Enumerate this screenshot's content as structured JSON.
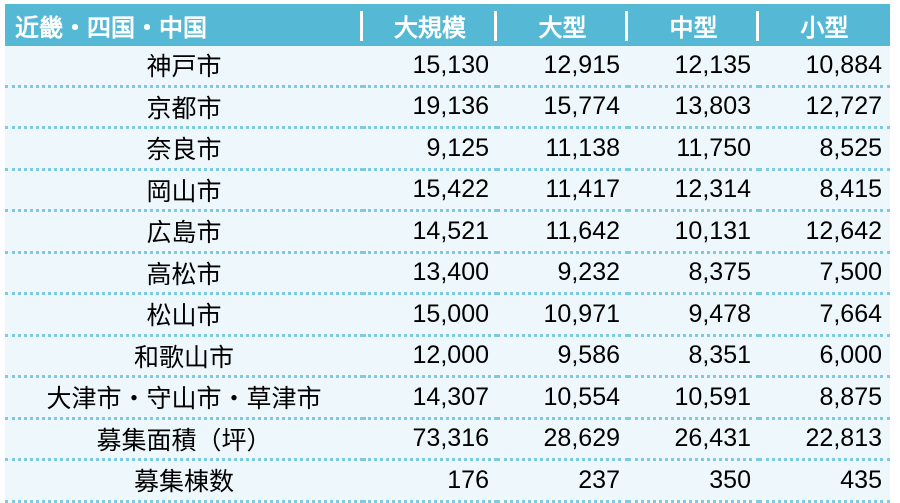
{
  "table": {
    "headers": [
      "近畿・四国・中国",
      "大規模",
      "大型",
      "中型",
      "小型"
    ],
    "rows": [
      {
        "name": "神戸市",
        "values": [
          "15,130",
          "12,915",
          "12,135",
          "10,884"
        ]
      },
      {
        "name": "京都市",
        "values": [
          "19,136",
          "15,774",
          "13,803",
          "12,727"
        ]
      },
      {
        "name": "奈良市",
        "values": [
          "9,125",
          "11,138",
          "11,750",
          "8,525"
        ]
      },
      {
        "name": "岡山市",
        "values": [
          "15,422",
          "11,417",
          "12,314",
          "8,415"
        ]
      },
      {
        "name": "広島市",
        "values": [
          "14,521",
          "11,642",
          "10,131",
          "12,642"
        ]
      },
      {
        "name": "高松市",
        "values": [
          "13,400",
          "9,232",
          "8,375",
          "7,500"
        ]
      },
      {
        "name": "松山市",
        "values": [
          "15,000",
          "10,971",
          "9,478",
          "7,664"
        ]
      },
      {
        "name": "和歌山市",
        "values": [
          "12,000",
          "9,586",
          "8,351",
          "6,000"
        ]
      },
      {
        "name": "大津市・守山市・草津市",
        "values": [
          "14,307",
          "10,554",
          "10,591",
          "8,875"
        ]
      },
      {
        "name": "募集面積（坪）",
        "values": [
          "73,316",
          "28,629",
          "26,431",
          "22,813"
        ]
      },
      {
        "name": "募集棟数",
        "values": [
          "176",
          "237",
          "350",
          "435"
        ]
      }
    ]
  },
  "colors": {
    "header_bg": "#55b9d6",
    "row_bg": "#eef7fb",
    "dotted_border": "#7ccbe3"
  }
}
